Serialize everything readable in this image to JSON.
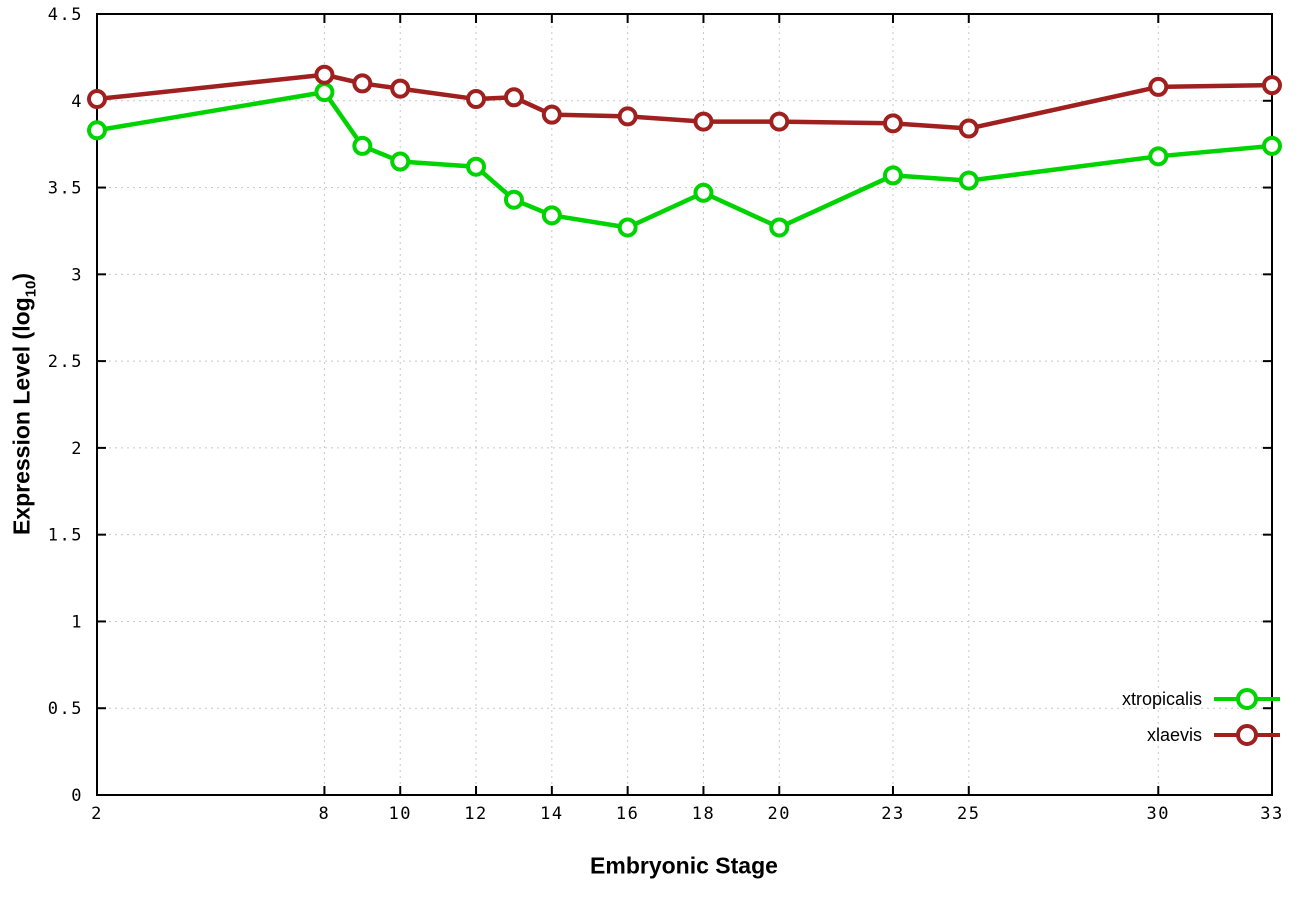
{
  "chart_data": {
    "type": "line",
    "title": "",
    "xlabel": "Embryonic Stage",
    "ylabel": "Expression Level (log10)",
    "ylabel_parts": {
      "prefix": "Expression Level (log",
      "sub": "10",
      "suffix": ")"
    },
    "x": [
      2,
      8,
      9,
      10,
      12,
      13,
      14,
      16,
      18,
      20,
      23,
      25,
      30,
      33
    ],
    "x_tick_labels": [
      2,
      8,
      10,
      12,
      14,
      16,
      18,
      20,
      23,
      25,
      30,
      33
    ],
    "y_ticks": [
      0,
      0.5,
      1,
      1.5,
      2,
      2.5,
      3,
      3.5,
      4,
      4.5
    ],
    "xlim": [
      2,
      33
    ],
    "ylim": [
      0,
      4.5
    ],
    "grid": true,
    "legend_position": "bottom-right",
    "series": [
      {
        "name": "xtropicalis",
        "color": "#00d400",
        "values": [
          3.83,
          4.05,
          3.74,
          3.65,
          3.62,
          3.43,
          3.34,
          3.27,
          3.47,
          3.27,
          3.57,
          3.54,
          3.68,
          3.74
        ]
      },
      {
        "name": "xlaevis",
        "color": "#a02020",
        "values": [
          4.01,
          4.15,
          4.1,
          4.07,
          4.01,
          4.02,
          3.92,
          3.91,
          3.88,
          3.88,
          3.87,
          3.84,
          4.08,
          4.09
        ]
      }
    ]
  }
}
